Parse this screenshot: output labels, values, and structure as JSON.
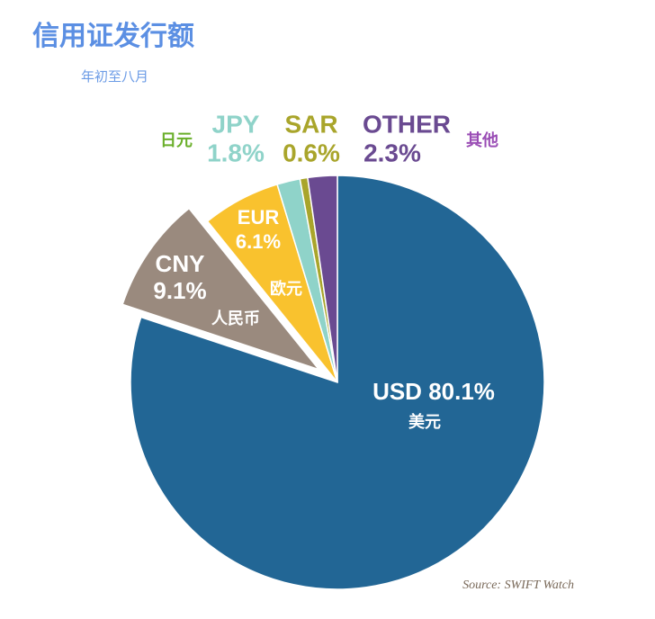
{
  "chart_data": {
    "type": "pie",
    "title": "信用证发行额",
    "subtitle": "年初至八月",
    "categories": [
      "USD",
      "CNY",
      "EUR",
      "JPY",
      "SAR",
      "OTHER"
    ],
    "local_names": [
      "美元",
      "人民币",
      "欧元",
      "日元",
      null,
      "其他"
    ],
    "values": [
      80.1,
      9.1,
      6.1,
      1.8,
      0.6,
      2.3
    ],
    "value_labels": [
      "80.1%",
      "9.1%",
      "6.1%",
      "1.8%",
      "0.6%",
      "2.3%"
    ],
    "colors": [
      "#226695",
      "#9a8a7e",
      "#f9c22e",
      "#8fd3c9",
      "#a9a52b",
      "#6a4a91"
    ],
    "exploded": [
      "CNY"
    ],
    "source": "Source: SWIFT Watch"
  }
}
